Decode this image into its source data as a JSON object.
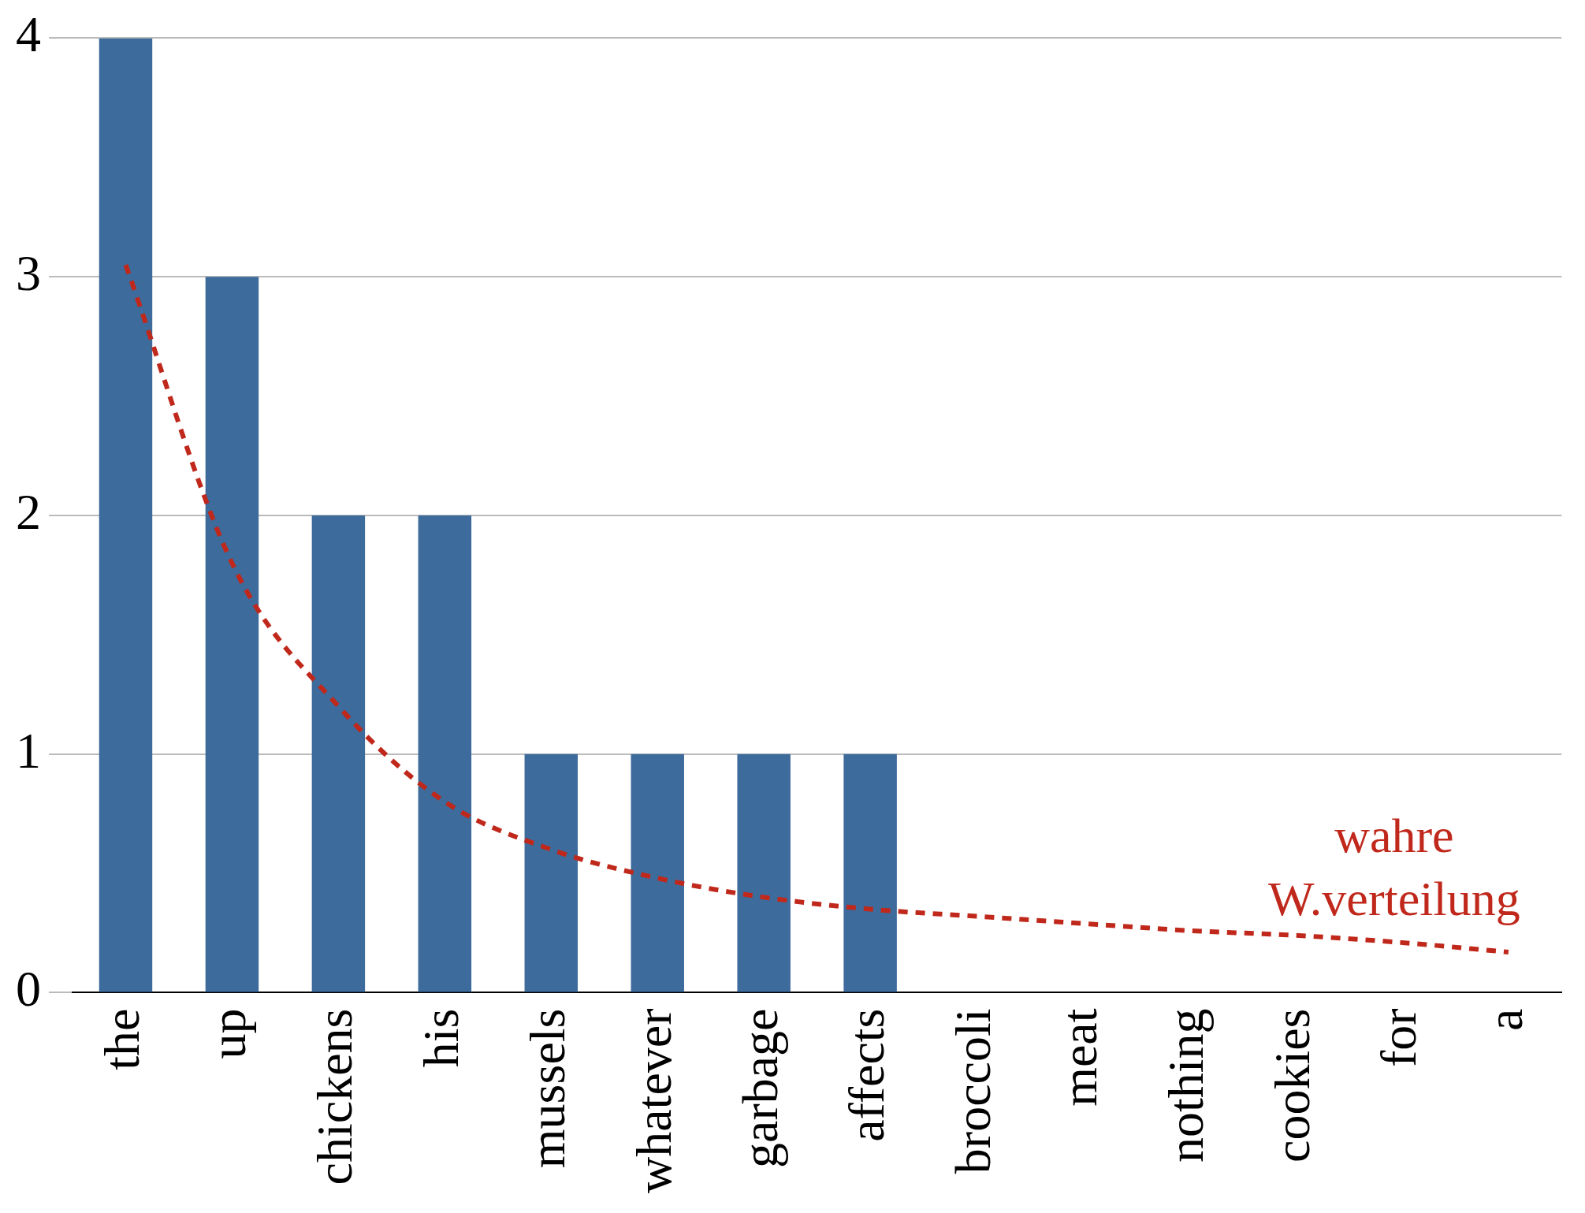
{
  "chart_data": {
    "type": "bar",
    "categories": [
      "the",
      "up",
      "chickens",
      "his",
      "mussels",
      "whatever",
      "garbage",
      "affects",
      "broccoli",
      "meat",
      "nothing",
      "cookies",
      "for",
      "a"
    ],
    "series": [
      {
        "color": "#3d6b9c",
        "values": [
          4,
          3,
          2,
          2,
          1,
          1,
          1,
          1,
          0,
          0,
          0,
          0,
          0,
          0
        ]
      },
      {
        "type": "line",
        "name": "wahre W.verteilung",
        "color": "#c0281b",
        "line_style": "dashed",
        "marker": "none",
        "values": [
          3.05,
          1.8,
          1.2,
          0.8,
          0.6,
          0.48,
          0.4,
          0.35,
          0.32,
          0.29,
          0.26,
          0.24,
          0.21,
          0.17
        ]
      }
    ],
    "ylim": [
      0,
      4
    ],
    "yticks": [
      0,
      1,
      2,
      3,
      4
    ],
    "grid": "y",
    "legend": false
  }
}
